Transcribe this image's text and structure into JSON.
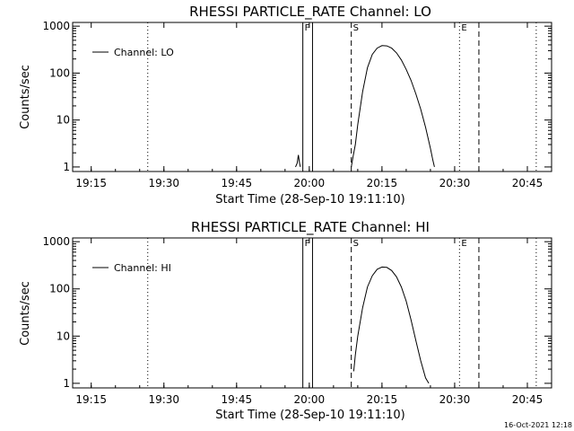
{
  "footer": {
    "timestamp": "16-Oct-2021 12:18"
  },
  "chart_data": [
    {
      "type": "line",
      "title": "RHESSI PARTICLE_RATE Channel: LO",
      "xlabel": "Start Time (28-Sep-10 19:11:10)",
      "ylabel": "Counts/sec",
      "yscale": "log",
      "xlim": [
        "19:11:10",
        "20:50:00"
      ],
      "ylim": [
        0.8,
        1200
      ],
      "x_ticks": [
        "19:15",
        "19:30",
        "19:45",
        "20:00",
        "20:15",
        "20:30",
        "20:45"
      ],
      "y_ticks": [
        "1",
        "10",
        "100",
        "1000"
      ],
      "legend": {
        "entries": [
          "Channel: LO"
        ],
        "position": "top-left"
      },
      "markers": [
        {
          "label": "",
          "time": "19:26:40",
          "style": "dotted"
        },
        {
          "label": "F",
          "time": "19:58:40",
          "style": "solid"
        },
        {
          "label": "",
          "time": "20:00:40",
          "style": "solid"
        },
        {
          "label": "S",
          "time": "20:08:40",
          "style": "dashed"
        },
        {
          "label": "",
          "time": "20:35:00",
          "style": "dashed"
        },
        {
          "label": "E",
          "time": "20:31:00",
          "style": "dotted"
        },
        {
          "label": "",
          "time": "20:46:50",
          "style": "dotted"
        }
      ],
      "series": [
        {
          "name": "Channel: LO",
          "segments": [
            {
              "x": [
                "19:57:10",
                "19:57:30",
                "19:57:45",
                "19:58:00",
                "19:58:10"
              ],
              "y": [
                1,
                1.2,
                1.8,
                1.2,
                1
              ]
            },
            {
              "x": [
                "20:08:40",
                "20:09:00",
                "20:09:30",
                "20:10:00",
                "20:11:00",
                "20:12:00",
                "20:13:00",
                "20:14:00",
                "20:15:00",
                "20:16:00",
                "20:17:00",
                "20:18:00",
                "20:19:00",
                "20:20:00",
                "20:21:00",
                "20:22:00",
                "20:23:00",
                "20:24:00",
                "20:25:00",
                "20:25:30",
                "20:25:50"
              ],
              "y": [
                1,
                1.6,
                3,
                8,
                40,
                130,
                250,
                340,
                385,
                380,
                340,
                270,
                190,
                120,
                70,
                36,
                17,
                7,
                2.5,
                1.4,
                1
              ]
            }
          ]
        }
      ]
    },
    {
      "type": "line",
      "title": "RHESSI PARTICLE_RATE Channel: HI",
      "xlabel": "Start Time (28-Sep-10 19:11:10)",
      "ylabel": "Counts/sec",
      "yscale": "log",
      "xlim": [
        "19:11:10",
        "20:50:00"
      ],
      "ylim": [
        0.8,
        1200
      ],
      "x_ticks": [
        "19:15",
        "19:30",
        "19:45",
        "20:00",
        "20:15",
        "20:30",
        "20:45"
      ],
      "y_ticks": [
        "1",
        "10",
        "100",
        "1000"
      ],
      "legend": {
        "entries": [
          "Channel: HI"
        ],
        "position": "top-left"
      },
      "markers": [
        {
          "label": "",
          "time": "19:26:40",
          "style": "dotted"
        },
        {
          "label": "F",
          "time": "19:58:40",
          "style": "solid"
        },
        {
          "label": "",
          "time": "20:00:40",
          "style": "solid"
        },
        {
          "label": "S",
          "time": "20:08:40",
          "style": "dashed"
        },
        {
          "label": "",
          "time": "20:35:00",
          "style": "dashed"
        },
        {
          "label": "E",
          "time": "20:31:00",
          "style": "dotted"
        },
        {
          "label": "",
          "time": "20:46:50",
          "style": "dotted"
        }
      ],
      "series": [
        {
          "name": "Channel: HI",
          "segments": [
            {
              "x": [
                "20:09:10",
                "20:09:30",
                "20:10:00",
                "20:11:00",
                "20:12:00",
                "20:13:00",
                "20:14:00",
                "20:15:00",
                "20:16:00",
                "20:17:00",
                "20:18:00",
                "20:19:00",
                "20:20:00",
                "20:21:00",
                "20:22:00",
                "20:23:00",
                "20:24:00",
                "20:24:40"
              ],
              "y": [
                1.8,
                4,
                10,
                40,
                110,
                190,
                260,
                290,
                285,
                245,
                180,
                110,
                55,
                22,
                8,
                3,
                1.3,
                1
              ]
            }
          ]
        }
      ]
    }
  ]
}
